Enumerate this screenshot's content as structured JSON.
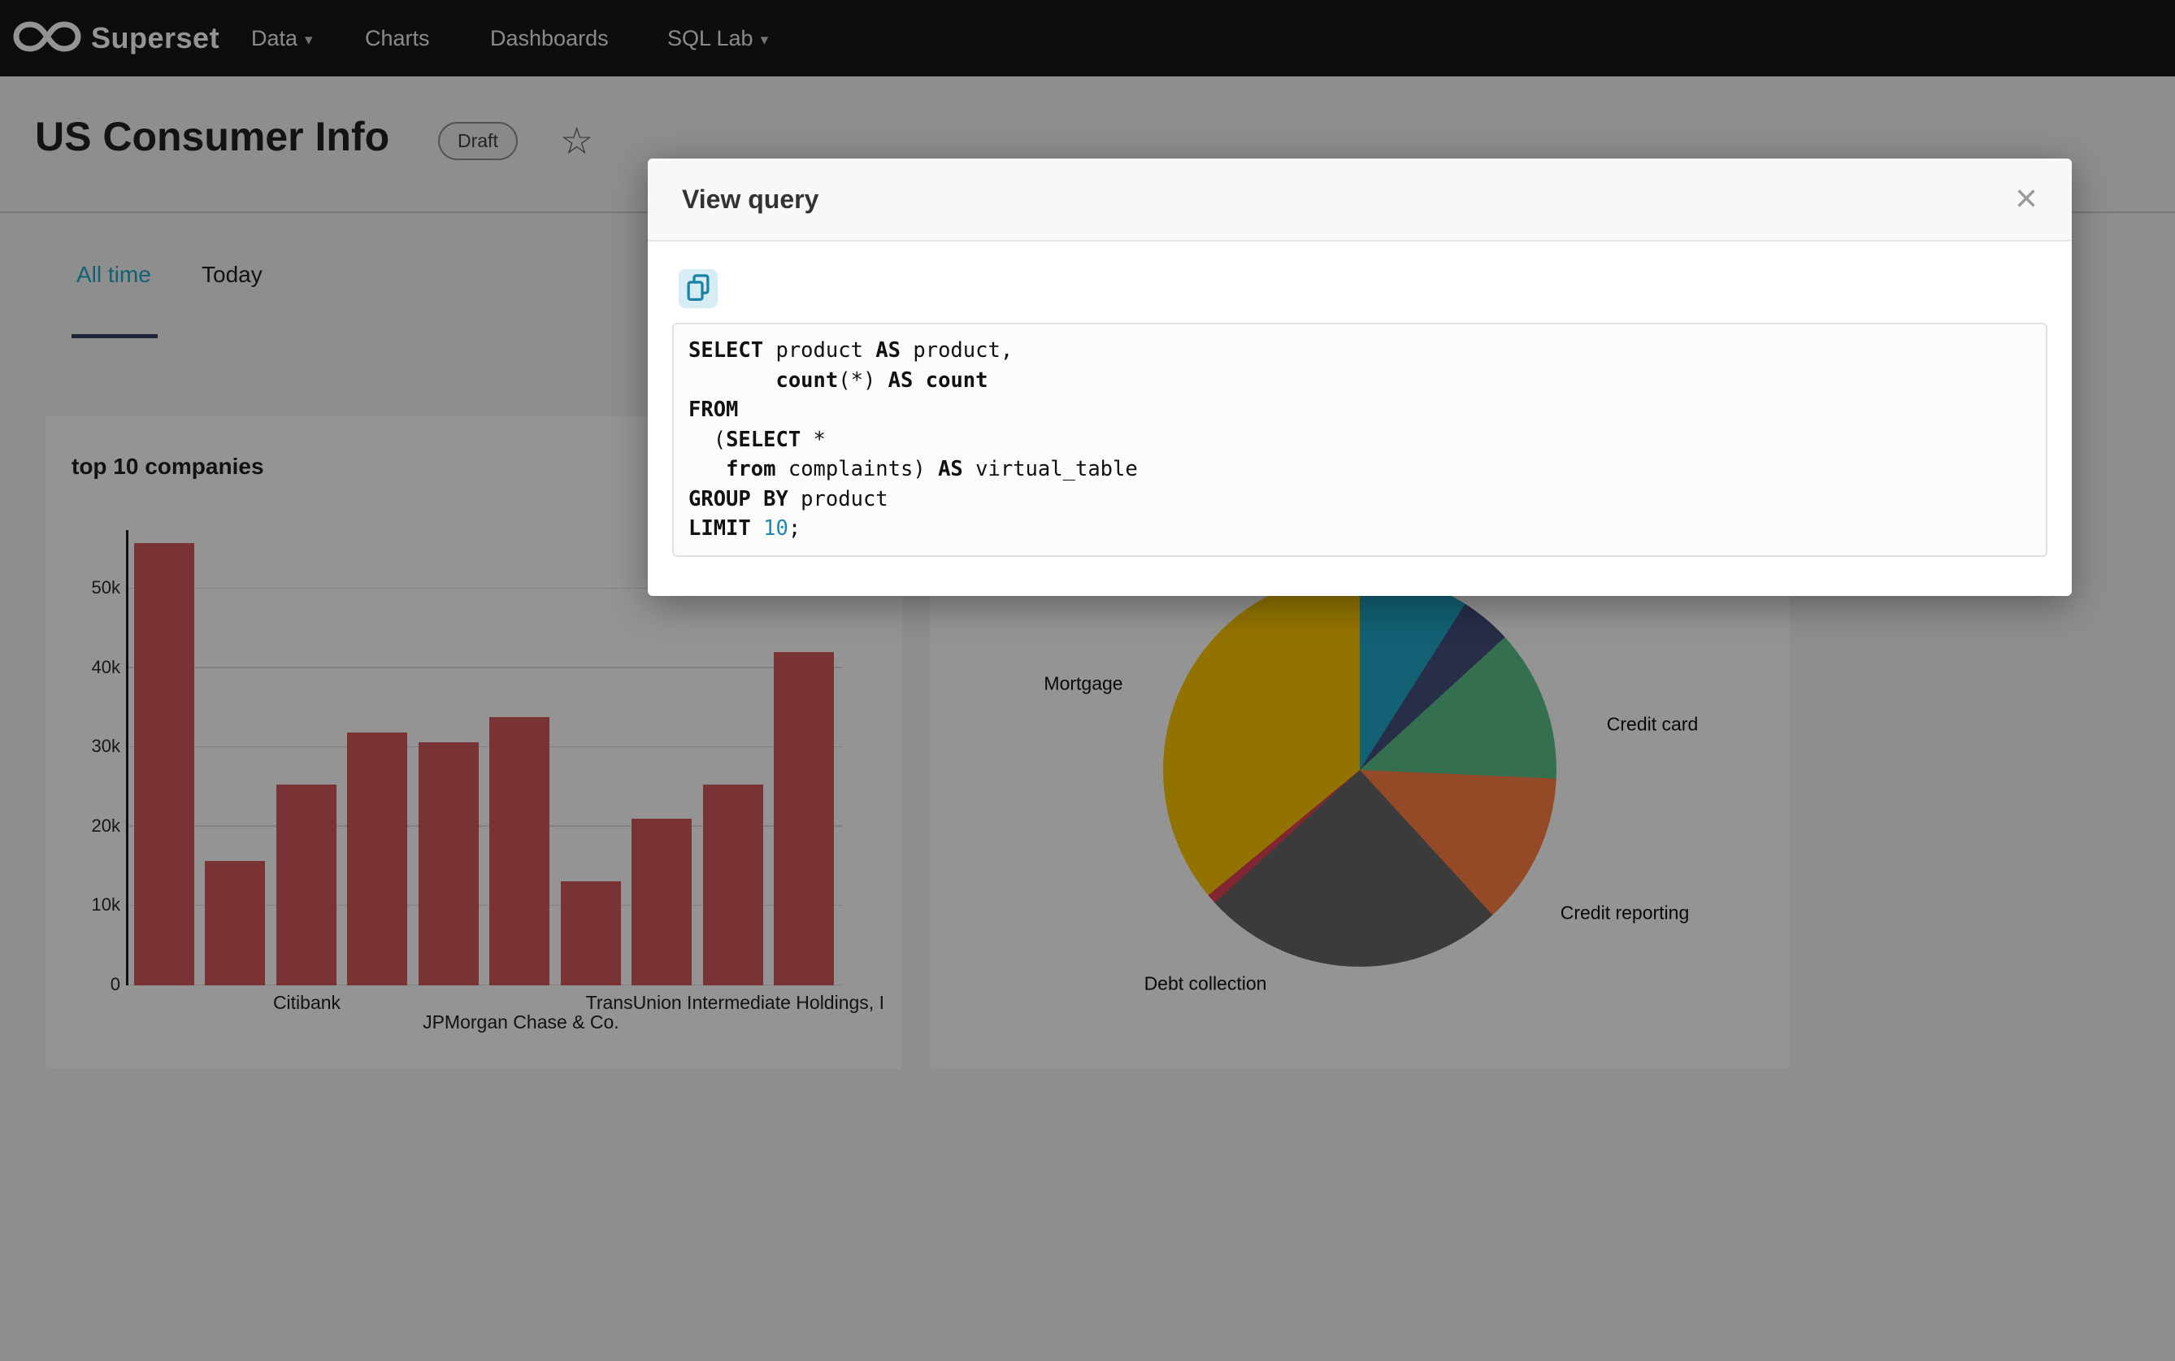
{
  "icons": {
    "close": "×",
    "caret": "▾",
    "star": "☆",
    "copy": "clipboard-icon",
    "logo": "infinity-logo"
  },
  "navbar": {
    "brand": "Superset",
    "items": [
      {
        "label": "Data",
        "has_caret": true
      },
      {
        "label": "Charts",
        "has_caret": false
      },
      {
        "label": "Dashboards",
        "has_caret": false
      },
      {
        "label": "SQL Lab",
        "has_caret": true
      }
    ]
  },
  "header": {
    "title": "US Consumer Info",
    "status_badge": "Draft"
  },
  "tabs": [
    {
      "label": "All time",
      "active": true
    },
    {
      "label": "Today",
      "active": false
    }
  ],
  "modal": {
    "title": "View query",
    "sql_text": "SELECT product AS product,\n       count(*) AS count\nFROM\n  (SELECT *\n   from complaints) AS virtual_table\nGROUP BY product\nLIMIT 10;",
    "sql_lines": [
      [
        {
          "t": "SELECT",
          "y": "k"
        },
        {
          "t": " product ",
          "y": "p"
        },
        {
          "t": "AS",
          "y": "k"
        },
        {
          "t": " product,",
          "y": "p"
        }
      ],
      [
        {
          "t": "       ",
          "y": "p"
        },
        {
          "t": "count",
          "y": "k"
        },
        {
          "t": "(*) ",
          "y": "p"
        },
        {
          "t": "AS",
          "y": "k"
        },
        {
          "t": " ",
          "y": "p"
        },
        {
          "t": "count",
          "y": "k"
        }
      ],
      [
        {
          "t": "FROM",
          "y": "k"
        }
      ],
      [
        {
          "t": "  (",
          "y": "p"
        },
        {
          "t": "SELECT",
          "y": "k"
        },
        {
          "t": " *",
          "y": "p"
        }
      ],
      [
        {
          "t": "   ",
          "y": "p"
        },
        {
          "t": "from",
          "y": "k"
        },
        {
          "t": " complaints) ",
          "y": "p"
        },
        {
          "t": "AS",
          "y": "k"
        },
        {
          "t": " virtual_table",
          "y": "p"
        }
      ],
      [
        {
          "t": "GROUP BY",
          "y": "k"
        },
        {
          "t": " product",
          "y": "p"
        }
      ],
      [
        {
          "t": "LIMIT",
          "y": "k"
        },
        {
          "t": " ",
          "y": "p"
        },
        {
          "t": "10",
          "y": "n"
        },
        {
          "t": ";",
          "y": "p"
        }
      ]
    ]
  },
  "chart_data": [
    {
      "type": "bar",
      "title": "top 10 companies",
      "values": [
        55800,
        15700,
        25300,
        31900,
        30700,
        33800,
        13100,
        21000,
        25300,
        42000
      ],
      "bar_color": "#d0585c",
      "ylim": [
        0,
        57400
      ],
      "yticks": [
        {
          "v": 0,
          "label": "0"
        },
        {
          "v": 10000,
          "label": "10k"
        },
        {
          "v": 20000,
          "label": "20k"
        },
        {
          "v": 30000,
          "label": "30k"
        },
        {
          "v": 40000,
          "label": "40k"
        },
        {
          "v": 50000,
          "label": "50k"
        }
      ],
      "visible_x_labels": [
        {
          "label": "Citibank",
          "bar_index": 2,
          "row": 0
        },
        {
          "label": "JPMorgan Chase & Co.",
          "bar_index": 5,
          "row": 1
        },
        {
          "label": "TransUnion Intermediate Holdings, I",
          "bar_index": 8,
          "row": 0
        }
      ],
      "grid": true
    },
    {
      "type": "pie",
      "unit": "percent_estimate",
      "slices": [
        {
          "label": "",
          "value": 9.0,
          "color": "#1FA8C9"
        },
        {
          "label": "",
          "value": 4.2,
          "color": "#454E7C"
        },
        {
          "label": "Credit card",
          "value": 12.5,
          "color": "#5AC189"
        },
        {
          "label": "Credit reporting",
          "value": 12.5,
          "color": "#FF7F44"
        },
        {
          "label": "Debt collection",
          "value": 25.0,
          "color": "#666666"
        },
        {
          "label": "",
          "value": 0.8,
          "color": "#E04355"
        },
        {
          "label": "Mortgage",
          "value": 36.0,
          "color": "#FCC700"
        }
      ]
    }
  ]
}
